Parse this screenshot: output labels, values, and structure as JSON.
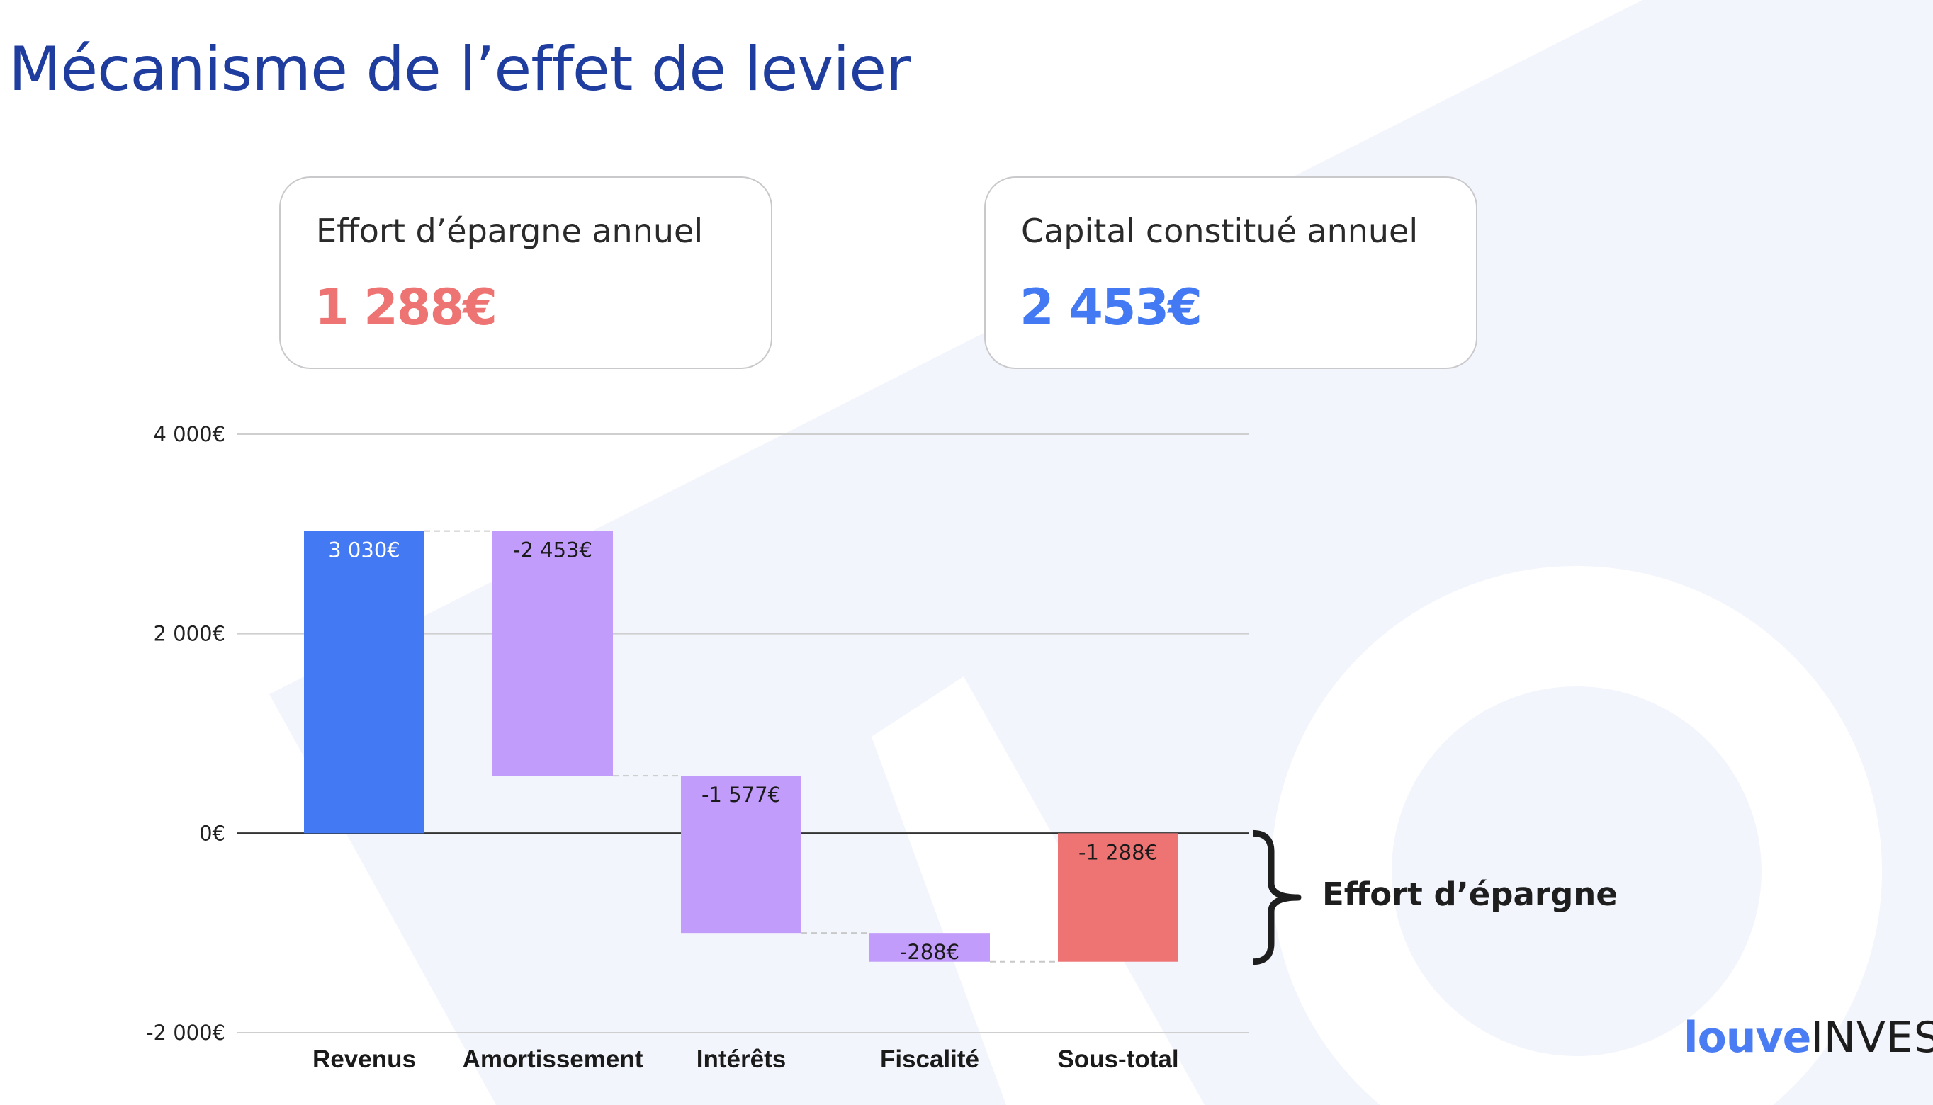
{
  "page": {
    "title": "Mécanisme de l’effet de levier"
  },
  "cards": [
    {
      "label": "Effort d’épargne annuel",
      "value": "1 288€",
      "color": "#ee7474"
    },
    {
      "label": "Capital constitué annuel",
      "value": "2 453€",
      "color": "#4379f2"
    }
  ],
  "annotation": {
    "label": "Effort d’épargne"
  },
  "logo": {
    "part1": "louve",
    "part2": "INVEST"
  },
  "colors": {
    "title": "#1f3d9f",
    "total": "#4379f2",
    "step": "#c29cfa",
    "subtotal": "#ee7474",
    "background_shape": "#f3f5fc"
  },
  "chart_data": {
    "type": "waterfall",
    "ylim": [
      -2000,
      4000
    ],
    "yticks": [
      4000,
      2000,
      0,
      -2000
    ],
    "ytick_labels": [
      "4 000€",
      "2 000€",
      "0€",
      "-2 000€"
    ],
    "grid": true,
    "categories": [
      "Revenus",
      "Amortissement",
      "Intérêts",
      "Fiscalité",
      "Sous-total"
    ],
    "bars": [
      {
        "category": "Revenus",
        "start": 0,
        "end": 3030,
        "value": 3030,
        "label": "3 030€",
        "kind": "total"
      },
      {
        "category": "Amortissement",
        "start": 3030,
        "end": 577,
        "value": -2453,
        "label": "-2 453€",
        "kind": "step"
      },
      {
        "category": "Intérêts",
        "start": 577,
        "end": -1000,
        "value": -1577,
        "label": "-1 577€",
        "kind": "step"
      },
      {
        "category": "Fiscalité",
        "start": -1000,
        "end": -1288,
        "value": -288,
        "label": "-288€",
        "kind": "step"
      },
      {
        "category": "Sous-total",
        "start": 0,
        "end": -1288,
        "value": -1288,
        "label": "-1 288€",
        "kind": "subtotal"
      }
    ]
  }
}
